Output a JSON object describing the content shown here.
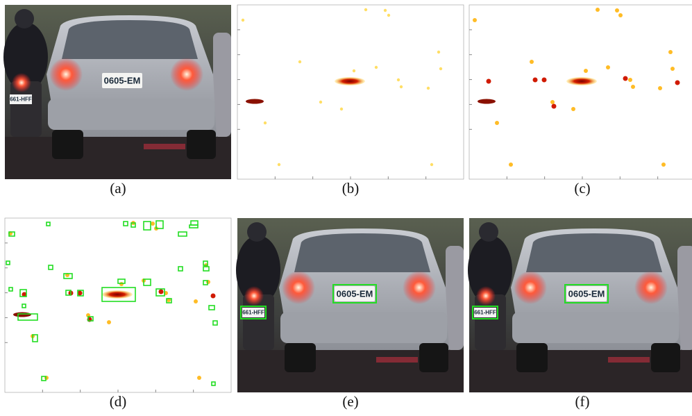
{
  "panels": [
    {
      "caption": "(a)",
      "kind": "photo",
      "plate": "0605-EM",
      "small_plate": "661-HFF"
    },
    {
      "caption": "(b)",
      "kind": "heatmap"
    },
    {
      "caption": "(c)",
      "kind": "heatmap"
    },
    {
      "caption": "(d)",
      "kind": "detections"
    },
    {
      "caption": "(e)",
      "kind": "photo",
      "plate": "0605-EM",
      "small_plate": "661-HFF",
      "boxes": true
    },
    {
      "caption": "(f)",
      "kind": "photo",
      "plate": "0605-EM",
      "small_plate": "661-HFF",
      "boxes": true
    }
  ]
}
